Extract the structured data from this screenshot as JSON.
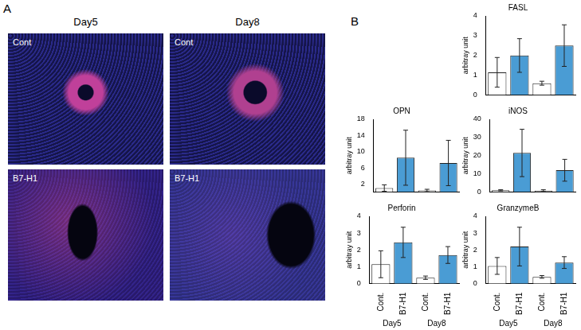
{
  "figure": {
    "panels": [
      {
        "label": "A",
        "columns": [
          "Day5",
          "Day8"
        ],
        "rows": [
          "Cont",
          "B7-H1"
        ]
      },
      {
        "label": "B"
      }
    ]
  },
  "chart_data": [
    {
      "type": "bar",
      "title": "FASL",
      "y_label": "arbitray unit",
      "categories": [
        "Cont.",
        "B7-H1",
        "Cont.",
        "B7-H1"
      ],
      "values": [
        1.15,
        2.0,
        0.6,
        2.5
      ],
      "errors": [
        0.75,
        0.85,
        0.1,
        1.05
      ],
      "colors": [
        "#ffffff",
        "#4a9cd4",
        "#ffffff",
        "#4a9cd4"
      ],
      "ylim": [
        0,
        4
      ],
      "yticks": [
        0,
        1,
        2,
        3,
        4
      ],
      "grid": false,
      "tick_labels": "y"
    },
    {
      "type": "bar",
      "title": "OPN",
      "y_label": "arbitray unit",
      "categories": [
        "Cont.",
        "B7-H1",
        "Cont.",
        "B7-H1"
      ],
      "values": [
        1.0,
        8.5,
        0.4,
        7.2
      ],
      "errors": [
        0.8,
        6.8,
        0.3,
        5.6
      ],
      "colors": [
        "#ffffff",
        "#4a9cd4",
        "#ffffff",
        "#4a9cd4"
      ],
      "ylim": [
        0,
        18
      ],
      "yticks": [
        2,
        6,
        10,
        14,
        18
      ],
      "grid": false,
      "tick_labels": "y"
    },
    {
      "type": "bar",
      "title": "iNOS",
      "y_label": "arbitray unit",
      "categories": [
        "Cont.",
        "B7-H1",
        "Cont.",
        "B7-H1"
      ],
      "values": [
        1.0,
        21.5,
        0.8,
        12
      ],
      "errors": [
        0.3,
        13,
        0.5,
        6
      ],
      "colors": [
        "#ffffff",
        "#4a9cd4",
        "#ffffff",
        "#4a9cd4"
      ],
      "ylim": [
        0,
        40
      ],
      "yticks": [
        0,
        10,
        20,
        30,
        40
      ],
      "grid": false,
      "tick_labels": "y"
    },
    {
      "type": "bar",
      "title": "Perforin",
      "y_label": "arbitray unit",
      "categories": [
        "Cont.",
        "B7-H1",
        "Cont.",
        "B7-H1"
      ],
      "groups": [
        "Day5",
        "Day8"
      ],
      "values": [
        1.15,
        2.45,
        0.35,
        1.7
      ],
      "errors": [
        0.8,
        0.9,
        0.1,
        0.5
      ],
      "colors": [
        "#ffffff",
        "#4a9cd4",
        "#ffffff",
        "#4a9cd4"
      ],
      "ylim": [
        0,
        4
      ],
      "yticks": [
        0,
        1,
        2,
        3,
        4
      ],
      "grid": false,
      "tick_labels": true
    },
    {
      "type": "bar",
      "title": "GranzymeB",
      "y_label": "arbitray unit",
      "categories": [
        "Cont.",
        "B7-H1",
        "Cont.",
        "B7-H1"
      ],
      "groups": [
        "Day5",
        "Day8"
      ],
      "values": [
        1.05,
        2.2,
        0.4,
        1.25
      ],
      "errors": [
        0.5,
        1.15,
        0.08,
        0.35
      ],
      "colors": [
        "#ffffff",
        "#4a9cd4",
        "#ffffff",
        "#4a9cd4"
      ],
      "ylim": [
        0,
        4
      ],
      "yticks": [
        0,
        1,
        2,
        3,
        4
      ],
      "grid": false,
      "tick_labels": true
    }
  ]
}
